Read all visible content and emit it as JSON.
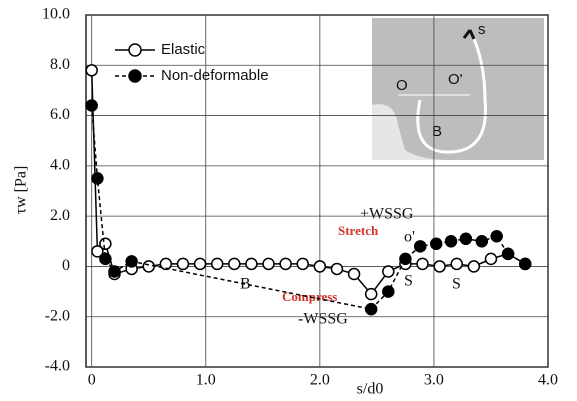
{
  "chart_data": {
    "type": "line",
    "ylabel": "τw [Pa]",
    "xlabel": "s/d0",
    "xlim": [
      -0.05,
      4.0
    ],
    "xticks": [
      0,
      {
        "value": 1,
        "label": "1.0"
      },
      {
        "value": 2,
        "label": "2.0"
      },
      {
        "value": 3,
        "label": "3.0"
      },
      {
        "value": 4,
        "label": "4.0"
      }
    ],
    "ylim": [
      -4,
      10
    ],
    "yticks": [
      {
        "value": -4,
        "label": "-4.0"
      },
      {
        "value": -2,
        "label": "-2.0"
      },
      0,
      {
        "value": 2,
        "label": "2.0"
      },
      {
        "value": 4,
        "label": "4.0"
      },
      {
        "value": 6,
        "label": "6.0"
      },
      {
        "value": 8,
        "label": "8.0"
      },
      {
        "value": 10,
        "label": "10.0"
      }
    ],
    "grid": true,
    "legend": "upper left",
    "series": [
      {
        "name": "Elastic",
        "color": "#000000",
        "marker": "open",
        "dash": false,
        "x": [
          0,
          0.05,
          0.12,
          0.2,
          0.35,
          0.5,
          0.65,
          0.8,
          0.95,
          1.1,
          1.25,
          1.4,
          1.55,
          1.7,
          1.85,
          2.0,
          2.15,
          2.3,
          2.45,
          2.6,
          2.75,
          2.9,
          3.05,
          3.2,
          3.35,
          3.5,
          3.65,
          3.8
        ],
        "values": [
          7.8,
          0.6,
          0.9,
          -0.3,
          -0.1,
          0,
          0.1,
          0.1,
          0.1,
          0.1,
          0.1,
          0.1,
          0.1,
          0.1,
          0.1,
          0,
          -0.1,
          -0.3,
          -1.1,
          -0.2,
          0.1,
          0.1,
          0,
          0.1,
          0,
          0.3,
          0.5,
          0.1
        ]
      },
      {
        "name": "Non-deformable",
        "color": "#000000",
        "marker": "filled",
        "dash": true,
        "x": [
          0,
          0.05,
          0.12,
          0.2,
          0.35,
          2.45,
          2.6,
          2.75,
          2.88,
          3.02,
          3.15,
          3.28,
          3.42,
          3.55,
          3.65,
          3.8
        ],
        "values": [
          6.4,
          3.5,
          0.3,
          -0.2,
          0.2,
          -1.7,
          -1.0,
          0.3,
          0.8,
          0.9,
          1.0,
          1.1,
          1.0,
          1.2,
          0.5,
          0.1
        ]
      }
    ],
    "annotations": [
      "+WSSG",
      "Stretch",
      "o'",
      "Compress",
      "-WSSG",
      "B",
      "S",
      "S"
    ],
    "inset_labels": [
      "s",
      "O",
      "O'",
      "B"
    ]
  }
}
